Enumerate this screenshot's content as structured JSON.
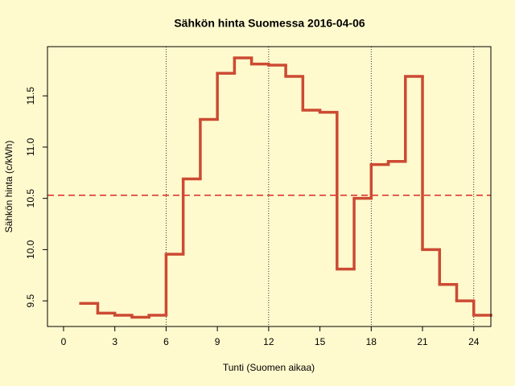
{
  "chart_data": {
    "type": "step",
    "title": "Sähkön hinta Suomessa 2016-04-06",
    "x_label": "Tunti (Suomen aikaa)",
    "y_label": "Sähkön hinta (c/kWh)",
    "x": [
      1,
      2,
      3,
      4,
      5,
      6,
      7,
      8,
      9,
      10,
      11,
      12,
      13,
      14,
      15,
      16,
      17,
      18,
      19,
      20,
      21,
      22,
      23,
      24
    ],
    "values": [
      9.476,
      9.38,
      9.36,
      9.34,
      9.36,
      9.955,
      10.69,
      11.27,
      11.72,
      11.87,
      11.81,
      11.8,
      11.69,
      11.36,
      11.34,
      9.81,
      10.5,
      10.83,
      10.86,
      11.69,
      10.0,
      9.66,
      9.5,
      9.36
    ],
    "color": "#cc4a33",
    "mean_line": 10.53,
    "mean_color": "#dd3a30",
    "vlines": [
      6,
      12,
      18,
      24
    ],
    "xlim": [
      -0.94,
      25
    ],
    "ylim": [
      9.25,
      11.98
    ],
    "xticks": [
      0,
      3,
      6,
      9,
      12,
      15,
      18,
      21,
      24
    ],
    "yticks": [
      9.5,
      {
        "value": 10,
        "label": "10.0"
      },
      10.5,
      {
        "value": 11,
        "label": "11.0"
      },
      11.5
    ]
  }
}
